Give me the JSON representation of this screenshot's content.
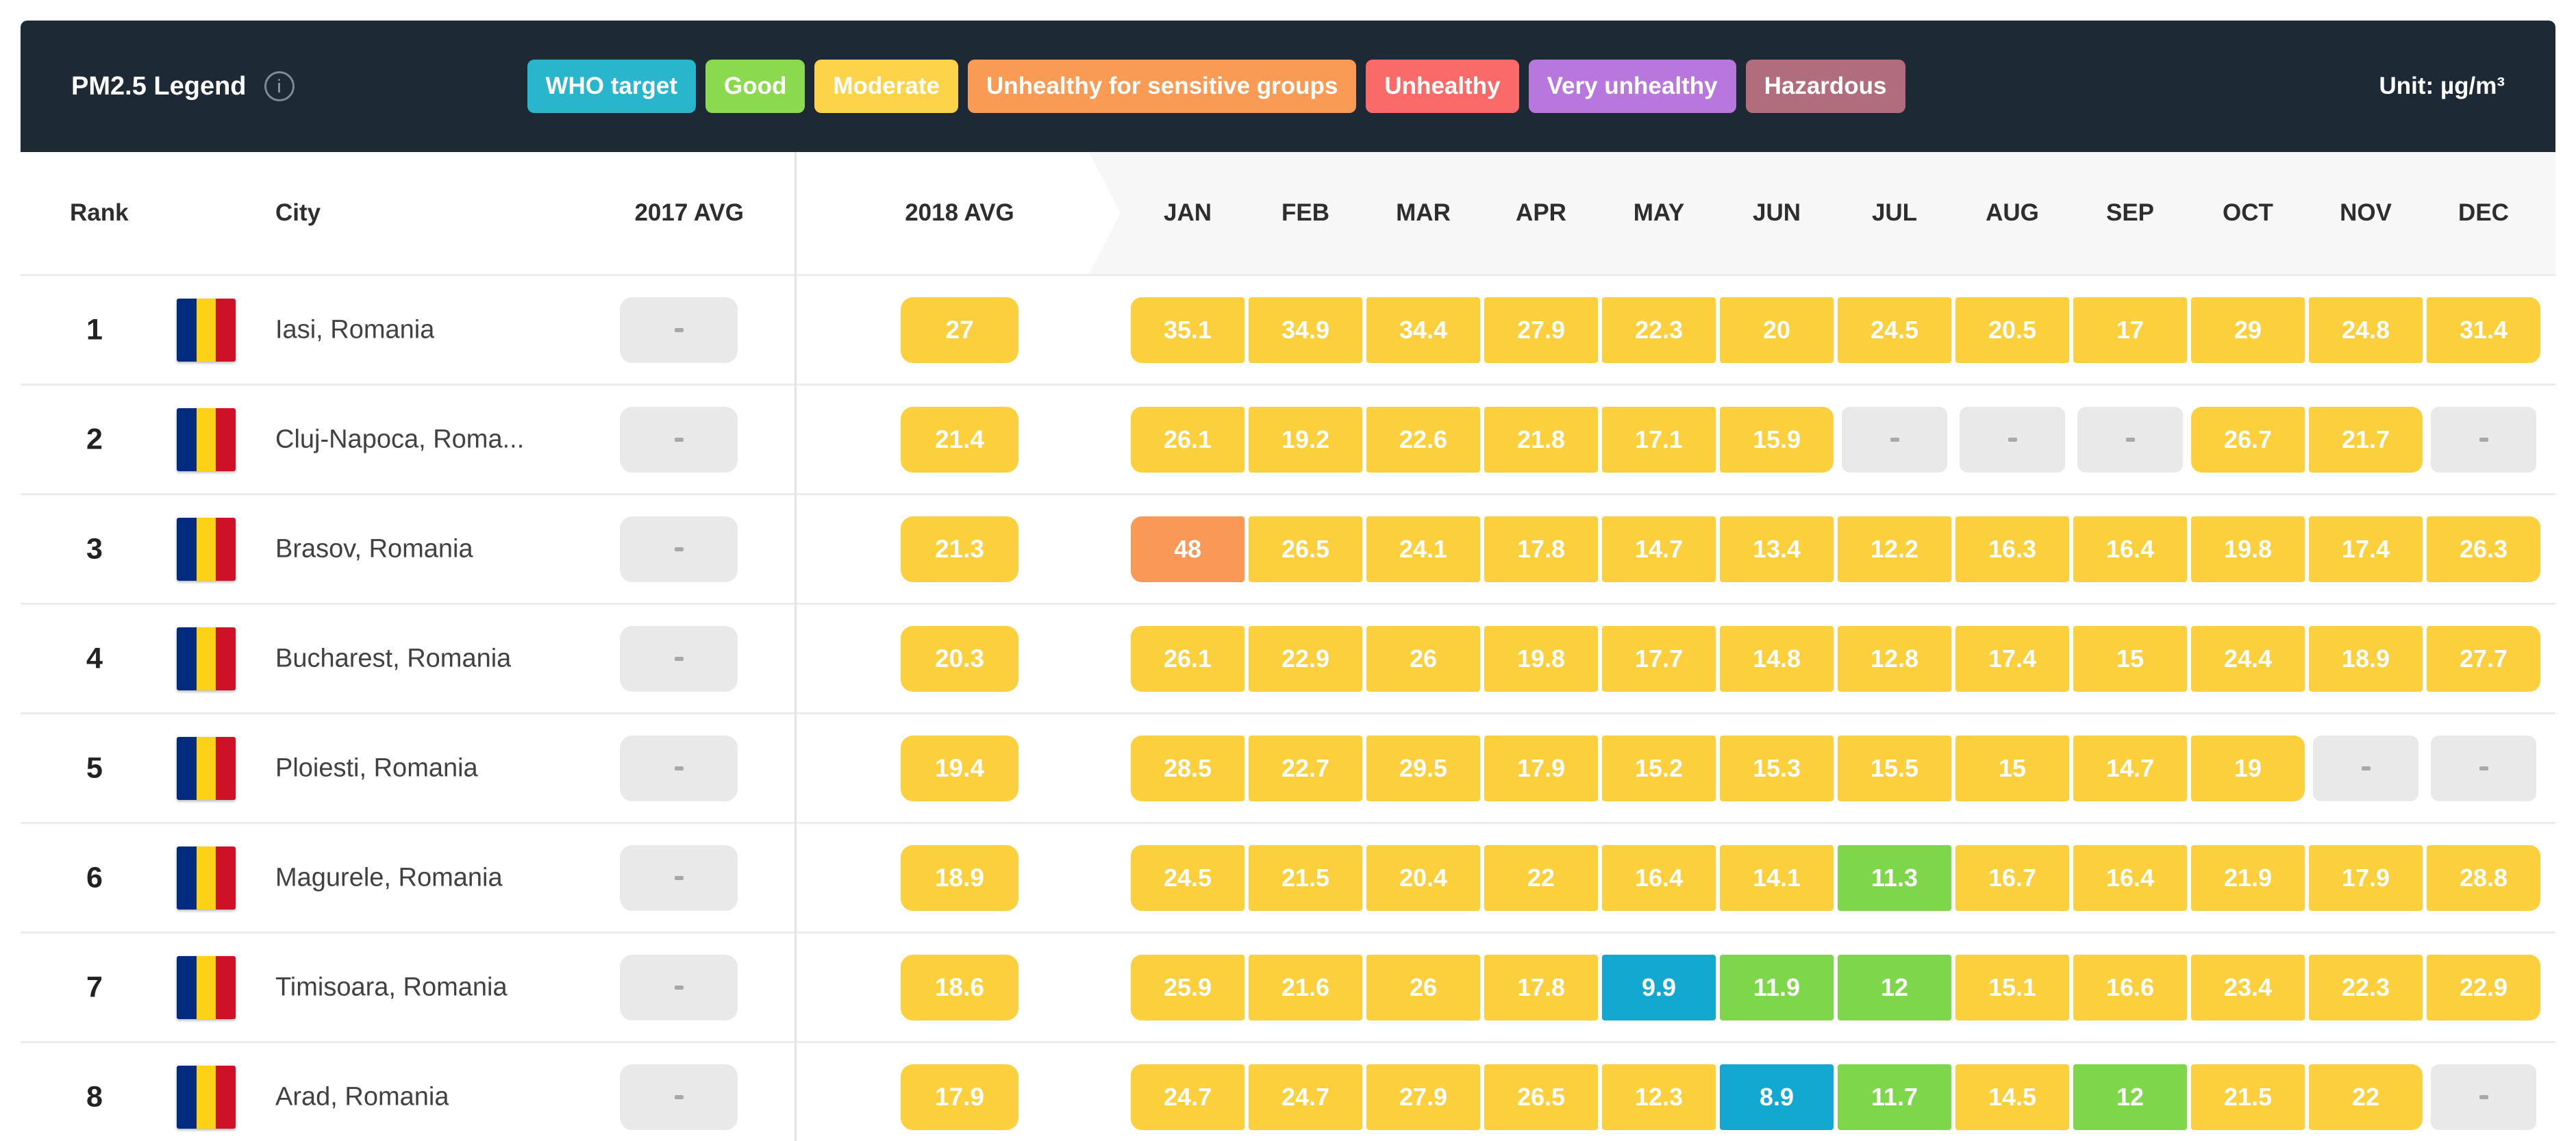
{
  "legend": {
    "title": "PM2.5 Legend",
    "info_icon": "info-icon",
    "unit_label": "Unit:",
    "unit_value": "µg/m³",
    "badges": [
      {
        "label": "WHO target",
        "color": "#29b5cc"
      },
      {
        "label": "Good",
        "color": "#8bd94e"
      },
      {
        "label": "Moderate",
        "color": "#fdd34a"
      },
      {
        "label": "Unhealthy for sensitive groups",
        "color": "#fa9b55"
      },
      {
        "label": "Unhealthy",
        "color": "#fa6a68"
      },
      {
        "label": "Very unhealthy",
        "color": "#b777dd"
      },
      {
        "label": "Hazardous",
        "color": "#b26d7d"
      }
    ]
  },
  "colors": {
    "header_bg": "#1d2935",
    "who": "#12a8d0",
    "good": "#7ed64b",
    "moderate": "#fccf3c",
    "usg": "#fa9956",
    "unhealthy": "#fa6a68",
    "very_unhealthy": "#b777dd",
    "hazardous": "#b26d7d",
    "na": "#e9e9e9"
  },
  "table": {
    "columns": {
      "rank": "Rank",
      "city": "City",
      "avg2017": "2017 AVG",
      "avg2018": "2018 AVG"
    },
    "months": [
      "JAN",
      "FEB",
      "MAR",
      "APR",
      "MAY",
      "JUN",
      "JUL",
      "AUG",
      "SEP",
      "OCT",
      "NOV",
      "DEC"
    ],
    "placeholder": "-",
    "rows": [
      {
        "rank": "1",
        "city": "Iasi, Romania",
        "avg2017": null,
        "avg2018": 27,
        "monthly": [
          35.1,
          34.9,
          34.4,
          27.9,
          22.3,
          20,
          24.5,
          20.5,
          17,
          29,
          24.8,
          31.4
        ]
      },
      {
        "rank": "2",
        "city": "Cluj-Napoca, Roma...",
        "avg2017": null,
        "avg2018": 21.4,
        "monthly": [
          26.1,
          19.2,
          22.6,
          21.8,
          17.1,
          15.9,
          null,
          null,
          null,
          26.7,
          21.7,
          null
        ]
      },
      {
        "rank": "3",
        "city": "Brasov, Romania",
        "avg2017": null,
        "avg2018": 21.3,
        "monthly": [
          48,
          26.5,
          24.1,
          17.8,
          14.7,
          13.4,
          12.2,
          16.3,
          16.4,
          19.8,
          17.4,
          26.3
        ]
      },
      {
        "rank": "4",
        "city": "Bucharest, Romania",
        "avg2017": null,
        "avg2018": 20.3,
        "monthly": [
          26.1,
          22.9,
          26,
          19.8,
          17.7,
          14.8,
          12.8,
          17.4,
          15,
          24.4,
          18.9,
          27.7
        ]
      },
      {
        "rank": "5",
        "city": "Ploiesti, Romania",
        "avg2017": null,
        "avg2018": 19.4,
        "monthly": [
          28.5,
          22.7,
          29.5,
          17.9,
          15.2,
          15.3,
          15.5,
          15,
          14.7,
          19,
          null,
          null
        ]
      },
      {
        "rank": "6",
        "city": "Magurele, Romania",
        "avg2017": null,
        "avg2018": 18.9,
        "monthly": [
          24.5,
          21.5,
          20.4,
          22,
          16.4,
          14.1,
          11.3,
          16.7,
          16.4,
          21.9,
          17.9,
          28.8
        ]
      },
      {
        "rank": "7",
        "city": "Timisoara, Romania",
        "avg2017": null,
        "avg2018": 18.6,
        "monthly": [
          25.9,
          21.6,
          26,
          17.8,
          9.9,
          11.9,
          12,
          15.1,
          16.6,
          23.4,
          22.3,
          22.9
        ]
      },
      {
        "rank": "8",
        "city": "Arad, Romania",
        "avg2017": null,
        "avg2018": 17.9,
        "monthly": [
          24.7,
          24.7,
          27.9,
          26.5,
          12.3,
          8.9,
          11.7,
          14.5,
          12,
          21.5,
          22,
          null
        ]
      }
    ]
  }
}
